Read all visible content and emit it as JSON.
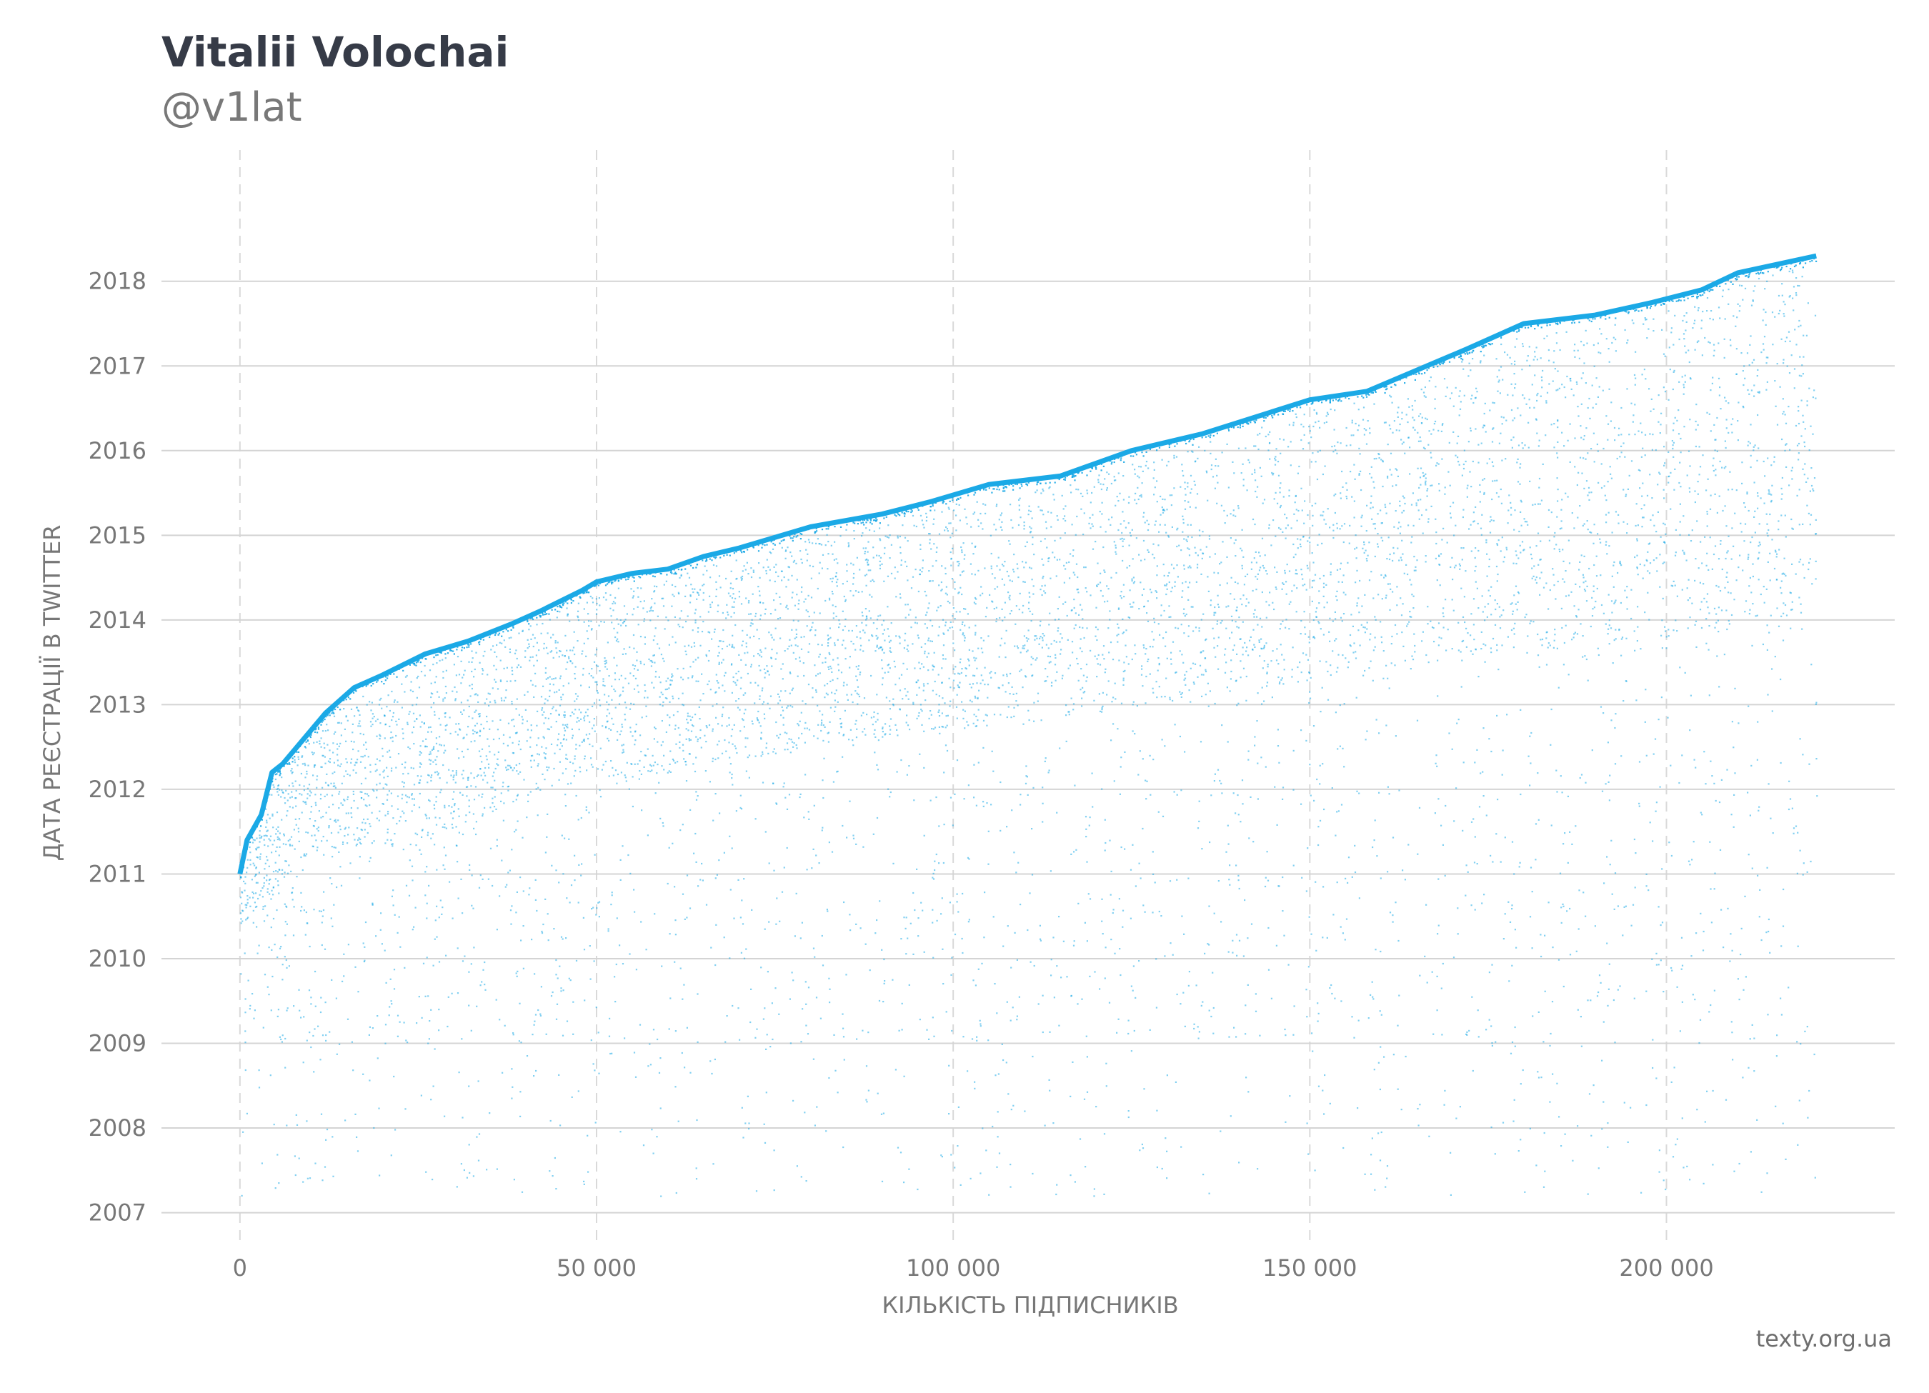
{
  "header": {
    "title": "Vitalii Volochai",
    "subtitle": "@v1lat"
  },
  "credit": "texty.org.ua",
  "chart_data": {
    "type": "scatter",
    "title": "Vitalii Volochai",
    "subtitle": "@v1lat",
    "xlabel": "КІЛЬКІСТЬ ПІДПИСНИКІВ",
    "ylabel": "ДАТА РЕЄСТРАЦІЇ В TWITTER",
    "xlim": [
      -11000,
      232000
    ],
    "ylim": [
      2006.6,
      2019.55
    ],
    "x_ticks": [
      0,
      50000,
      100000,
      150000,
      200000
    ],
    "x_tick_labels": [
      "0",
      "50 000",
      "100 000",
      "150 000",
      "200 000"
    ],
    "y_ticks": [
      2007,
      2008,
      2009,
      2010,
      2011,
      2012,
      2013,
      2014,
      2015,
      2016,
      2017,
      2018
    ],
    "y_tick_labels": [
      "2007",
      "2008",
      "2009",
      "2010",
      "2011",
      "2012",
      "2013",
      "2014",
      "2015",
      "2016",
      "2017",
      "2018"
    ],
    "grid": {
      "x": "dashed",
      "y": "solid"
    },
    "point_color": "#1ba9e6",
    "total_followers": 221000,
    "upper_envelope": {
      "x": [
        0,
        1000,
        3000,
        4500,
        6000,
        10000,
        12000,
        16000,
        20000,
        26000,
        32000,
        38000,
        42000,
        48000,
        50000,
        55000,
        60000,
        65000,
        70000,
        80000,
        90000,
        97000,
        105000,
        115000,
        125000,
        135000,
        150000,
        158000,
        165000,
        172000,
        180000,
        190000,
        198000,
        205000,
        210000,
        221000
      ],
      "y": [
        2011.0,
        2011.4,
        2011.7,
        2012.2,
        2012.3,
        2012.7,
        2012.9,
        2013.2,
        2013.35,
        2013.6,
        2013.75,
        2013.95,
        2014.1,
        2014.35,
        2014.45,
        2014.55,
        2014.6,
        2014.75,
        2014.85,
        2015.1,
        2015.25,
        2015.4,
        2015.6,
        2015.7,
        2016.0,
        2016.2,
        2016.6,
        2016.7,
        2016.95,
        2017.2,
        2017.5,
        2017.6,
        2017.75,
        2017.9,
        2018.1,
        2018.3
      ]
    },
    "dense_lower_bound": {
      "x": [
        0,
        10000,
        20000,
        26000,
        32000,
        42000,
        50000,
        60000,
        80000,
        100000,
        120000,
        150000,
        180000,
        200000,
        221000
      ],
      "y": [
        2010.4,
        2011.3,
        2011.35,
        2011.4,
        2011.6,
        2012.0,
        2012.1,
        2012.2,
        2012.5,
        2012.7,
        2012.9,
        2013.3,
        2013.6,
        2013.8,
        2014.0
      ]
    },
    "min_registration_year": 2007.2
  }
}
